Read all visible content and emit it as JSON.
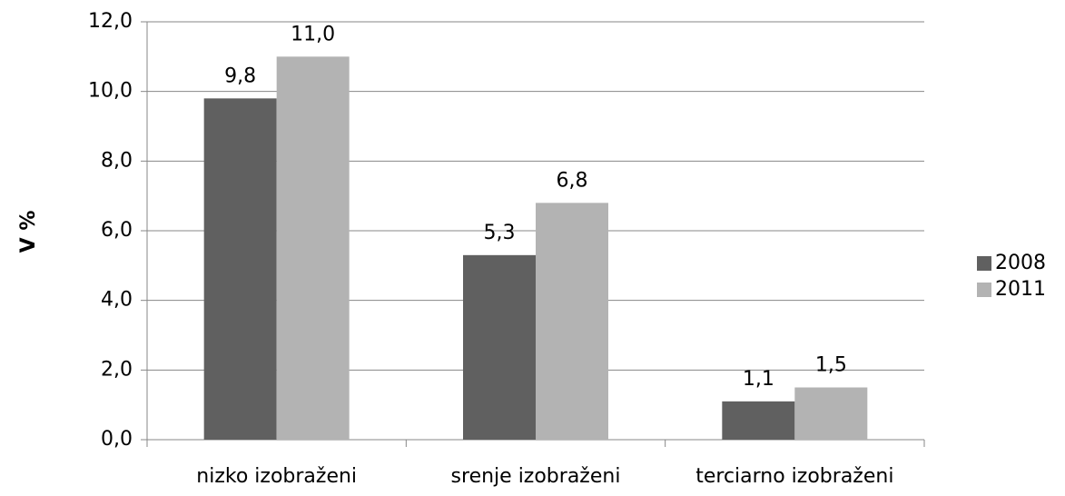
{
  "chart_data": {
    "type": "bar",
    "ylabel": "V %",
    "categories": [
      "nizko izobraženi",
      "srenje izobraženi",
      "terciarno izobraženi"
    ],
    "series": [
      {
        "name": "2008",
        "color": "#606060",
        "values": [
          9.8,
          5.3,
          1.1
        ],
        "value_labels": [
          "9,8",
          "5,3",
          "1,1"
        ]
      },
      {
        "name": "2011",
        "color": "#b3b3b3",
        "values": [
          11.0,
          6.8,
          1.5
        ],
        "value_labels": [
          "11,0",
          "6,8",
          "1,5"
        ]
      }
    ],
    "ylim": [
      0,
      12
    ],
    "yticks": [
      {
        "value": 0,
        "label": "0,0"
      },
      {
        "value": 2,
        "label": "2,0"
      },
      {
        "value": 4,
        "label": "4,0"
      },
      {
        "value": 6,
        "label": "6,0"
      },
      {
        "value": 8,
        "label": "8,0"
      },
      {
        "value": 10,
        "label": "10,0"
      },
      {
        "value": 12,
        "label": "12,0"
      }
    ],
    "grid": true,
    "legend": "right"
  }
}
